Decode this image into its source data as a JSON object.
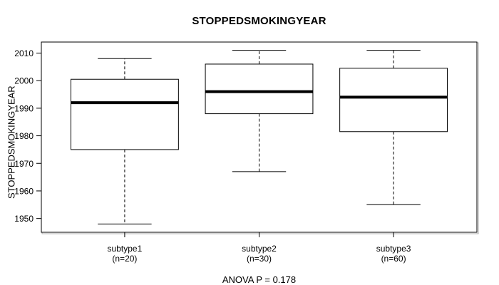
{
  "chart_data": {
    "type": "boxplot",
    "title": "STOPPEDSMOKINGYEAR",
    "ylabel": "STOPPEDSMOKINGYEAR",
    "annotation": "ANOVA P = 0.178",
    "categories": [
      "subtype1",
      "subtype2",
      "subtype3"
    ],
    "category_sublabels": [
      "(n=20)",
      "(n=30)",
      "(n=60)"
    ],
    "yticks": [
      1950,
      1960,
      1970,
      1980,
      1990,
      2000,
      2010
    ],
    "ylim": [
      1945,
      2014
    ],
    "grid": false,
    "legend": null,
    "series": [
      {
        "name": "subtype1",
        "n": 20,
        "whisker_low": 1948,
        "q1": 1975,
        "median": 1992,
        "q3": 2000.5,
        "whisker_high": 2008
      },
      {
        "name": "subtype2",
        "n": 30,
        "whisker_low": 1967,
        "q1": 1988,
        "median": 1996,
        "q3": 2006,
        "whisker_high": 2011
      },
      {
        "name": "subtype3",
        "n": 60,
        "whisker_low": 1955,
        "q1": 1981.5,
        "median": 1994,
        "q3": 2004.5,
        "whisker_high": 2011
      }
    ],
    "colors": {
      "stroke": "#000000",
      "background": "#ffffff",
      "frame_shadow": "#aaaaaa"
    }
  }
}
